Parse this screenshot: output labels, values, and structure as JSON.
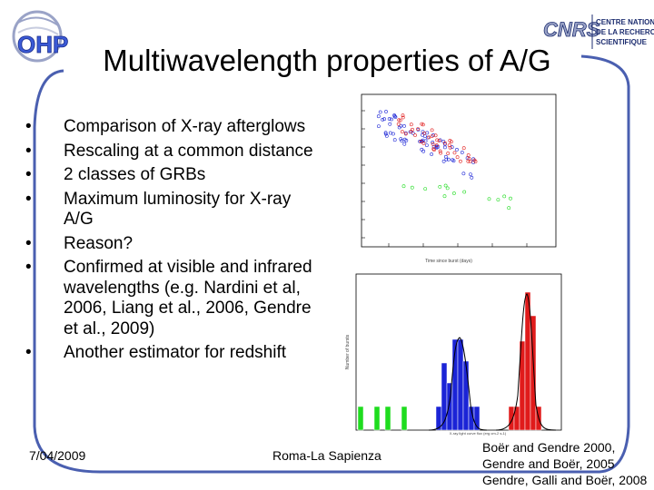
{
  "slide": {
    "title": "Multiwavelength properties of A/G",
    "bullets": [
      "Comparison of X-ray afterglows",
      "Rescaling at a common distance",
      "2 classes of GRBs",
      "Maximum luminosity for X-ray A/G",
      "Reason?",
      "Confirmed at visible and infrared wavelengths (e.g. Nardini et al, 2006, Liang et al., 2006, Gendre et al., 2009)",
      "Another estimator for redshift"
    ],
    "bullet_glyph": "•",
    "date": "7/04/2009",
    "venue": "Roma-La Sapienza",
    "references": [
      "Boër and Gendre 2000,",
      "Gendre and Boër, 2005",
      "Gendre, Galli and Boër, 2008"
    ]
  },
  "logos": {
    "left": "OHP",
    "right_mark": "CNRS",
    "right_text": [
      "CENTRE NATIONAL",
      "DE LA RECHERCHE",
      "SCIENTIFIQUE"
    ]
  },
  "figure_top": {
    "xaxis_label": "Time since burst (days)"
  },
  "figure_bottom": {
    "xaxis_label": "X-ray light curve flux (erg cm-2 s-1)",
    "yaxis_label": "Number of bursts"
  },
  "colors": {
    "frame": "#4a5fb0",
    "blue_series": "#1b24d6",
    "red_series": "#e01b1b",
    "green_series": "#1fdc1f"
  }
}
